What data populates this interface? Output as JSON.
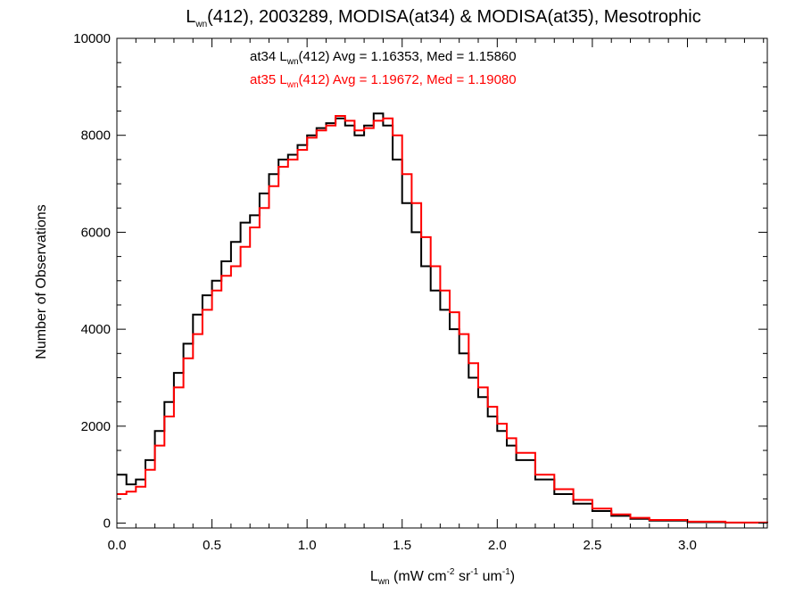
{
  "chart_data": {
    "type": "line",
    "title": {
      "base": "L",
      "sub": "wn",
      "rest": "(412), 2003289, MODISA(at34) & MODISA(at35), Mesotrophic"
    },
    "xlabel": {
      "base": "L",
      "sub": "wn",
      "unit_open": " (mW cm",
      "exp1": "-2",
      "unit_sr": " sr",
      "exp2": "-1",
      "unit_um": " um",
      "exp3": "-1",
      "unit_close": ")"
    },
    "ylabel": "Number of Observations",
    "xlim": [
      0,
      3.42
    ],
    "ylim": [
      -100,
      10000
    ],
    "xticks": [
      0.0,
      0.5,
      1.0,
      1.5,
      2.0,
      2.5,
      3.0
    ],
    "xtick_labels": [
      "0.0",
      "0.5",
      "1.0",
      "1.5",
      "2.0",
      "2.5",
      "3.0"
    ],
    "yticks": [
      0,
      2000,
      4000,
      6000,
      8000,
      10000
    ],
    "ytick_labels": [
      "0",
      "2000",
      "4000",
      "6000",
      "8000",
      "10000"
    ],
    "grid": false,
    "stats": [
      {
        "prefix": "at34 L",
        "sub": "wn",
        "suffix": "(412) Avg = 1.16353, Med = 1.15860",
        "color": "#000000"
      },
      {
        "prefix": "at35 L",
        "sub": "wn",
        "suffix": "(412) Avg = 1.19672, Med = 1.19080",
        "color": "#ff0000"
      }
    ],
    "series": [
      {
        "color": "#000000",
        "x": [
          0.0,
          0.05,
          0.1,
          0.15,
          0.2,
          0.25,
          0.3,
          0.35,
          0.4,
          0.45,
          0.5,
          0.55,
          0.6,
          0.65,
          0.7,
          0.75,
          0.8,
          0.85,
          0.9,
          0.95,
          1.0,
          1.05,
          1.1,
          1.15,
          1.2,
          1.25,
          1.3,
          1.35,
          1.4,
          1.45,
          1.5,
          1.55,
          1.6,
          1.65,
          1.7,
          1.75,
          1.8,
          1.85,
          1.9,
          1.95,
          2.0,
          2.05,
          2.1,
          2.2,
          2.3,
          2.4,
          2.5,
          2.6,
          2.7,
          2.8,
          3.0,
          3.2,
          3.42
        ],
        "y": [
          1000,
          800,
          900,
          1300,
          1900,
          2500,
          3100,
          3700,
          4300,
          4700,
          5000,
          5400,
          5800,
          6200,
          6350,
          6800,
          7200,
          7500,
          7600,
          7800,
          8000,
          8150,
          8250,
          8350,
          8200,
          8000,
          8200,
          8450,
          8200,
          7500,
          6600,
          6000,
          5300,
          4800,
          4400,
          4000,
          3500,
          3000,
          2600,
          2200,
          1900,
          1600,
          1300,
          900,
          600,
          400,
          250,
          150,
          90,
          50,
          20,
          10,
          5
        ]
      },
      {
        "color": "#ff0000",
        "x": [
          0.0,
          0.05,
          0.1,
          0.15,
          0.2,
          0.25,
          0.3,
          0.35,
          0.4,
          0.45,
          0.5,
          0.55,
          0.6,
          0.65,
          0.7,
          0.75,
          0.8,
          0.85,
          0.9,
          0.95,
          1.0,
          1.05,
          1.1,
          1.15,
          1.2,
          1.25,
          1.3,
          1.35,
          1.4,
          1.45,
          1.5,
          1.55,
          1.6,
          1.65,
          1.7,
          1.75,
          1.8,
          1.85,
          1.9,
          1.95,
          2.0,
          2.05,
          2.1,
          2.2,
          2.3,
          2.4,
          2.5,
          2.6,
          2.7,
          2.8,
          3.0,
          3.2,
          3.42
        ],
        "y": [
          600,
          650,
          750,
          1100,
          1600,
          2200,
          2800,
          3400,
          3900,
          4400,
          4800,
          5100,
          5300,
          5700,
          6100,
          6500,
          6950,
          7350,
          7500,
          7700,
          7950,
          8100,
          8200,
          8400,
          8300,
          8100,
          8150,
          8300,
          8350,
          8000,
          7200,
          6600,
          5900,
          5300,
          4800,
          4350,
          3900,
          3300,
          2800,
          2400,
          2050,
          1750,
          1450,
          1000,
          700,
          480,
          300,
          180,
          110,
          65,
          30,
          12,
          5
        ]
      }
    ]
  }
}
